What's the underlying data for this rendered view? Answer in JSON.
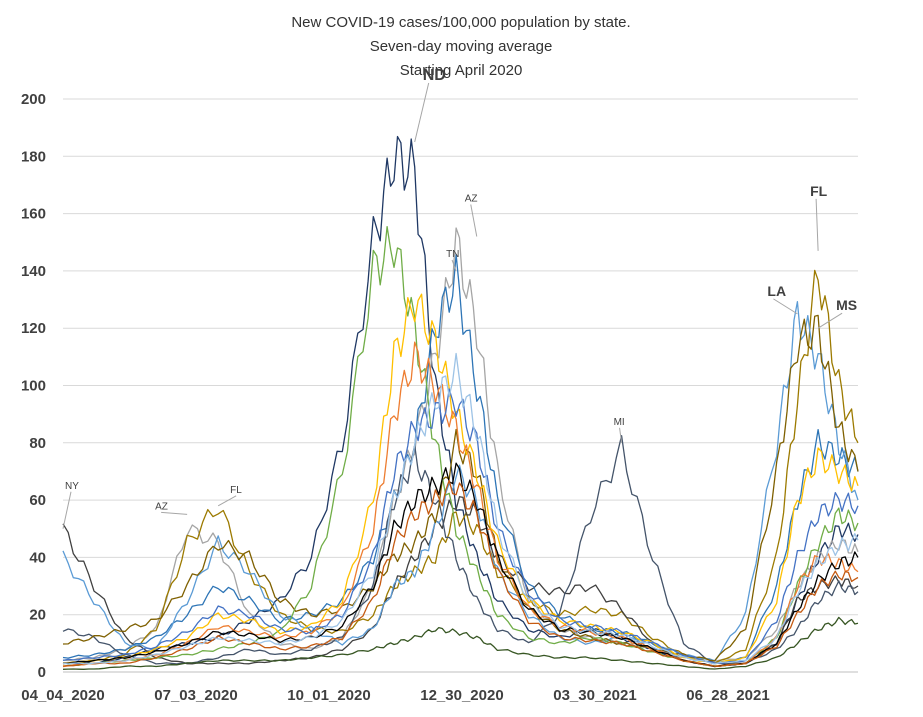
{
  "chart_data": {
    "type": "line",
    "title": [
      "New COVID-19 cases/100,000 population by state.",
      "Seven-day moving average",
      "Starting April 2020"
    ],
    "ylim": [
      0,
      200
    ],
    "yticks": [
      0,
      20,
      40,
      60,
      80,
      100,
      120,
      140,
      160,
      180,
      200
    ],
    "xlim": [
      "04_04_2020",
      "09_24_2021"
    ],
    "xticks": [
      "04_04_2020",
      "07_03_2020",
      "10_01_2020",
      "12_30_2020",
      "03_30_2021",
      "06_28_2021"
    ],
    "grid": true,
    "legend": "none",
    "x_dates": [
      "2020-04-04",
      "2020-04-25",
      "2020-05-16",
      "2020-06-06",
      "2020-06-27",
      "2020-07-18",
      "2020-08-08",
      "2020-08-29",
      "2020-09-19",
      "2020-10-10",
      "2020-10-31",
      "2020-11-14",
      "2020-11-28",
      "2020-12-12",
      "2020-12-26",
      "2021-01-09",
      "2021-01-23",
      "2021-02-13",
      "2021-03-06",
      "2021-03-27",
      "2021-04-17",
      "2021-05-08",
      "2021-05-29",
      "2021-06-19",
      "2021-07-10",
      "2021-07-31",
      "2021-08-14",
      "2021-08-28",
      "2021-09-11",
      "2021-09-24"
    ],
    "series": [
      {
        "name": "ND",
        "color": "#1f3864",
        "values": [
          3,
          3,
          5,
          8,
          10,
          12,
          18,
          25,
          40,
          80,
          150,
          180,
          175,
          100,
          60,
          40,
          25,
          15,
          12,
          15,
          12,
          8,
          4,
          2,
          3,
          10,
          25,
          40,
          50,
          48
        ]
      },
      {
        "name": "AZ",
        "color": "#a5a5a5",
        "values": [
          4,
          5,
          8,
          15,
          50,
          45,
          20,
          10,
          8,
          12,
          30,
          60,
          80,
          110,
          150,
          120,
          70,
          25,
          15,
          12,
          10,
          8,
          5,
          4,
          5,
          15,
          30,
          40,
          45,
          42
        ]
      },
      {
        "name": "FL",
        "color": "#9c7a00",
        "values": [
          3,
          4,
          6,
          15,
          45,
          58,
          35,
          20,
          15,
          14,
          20,
          30,
          35,
          40,
          55,
          50,
          35,
          25,
          20,
          22,
          20,
          12,
          6,
          3,
          8,
          40,
          95,
          140,
          100,
          80
        ]
      },
      {
        "name": "NY",
        "color": "#404040",
        "values": [
          50,
          30,
          12,
          5,
          3,
          3,
          3,
          4,
          5,
          8,
          15,
          30,
          40,
          50,
          60,
          55,
          40,
          30,
          28,
          30,
          22,
          10,
          4,
          2,
          3,
          10,
          25,
          30,
          32,
          30
        ]
      },
      {
        "name": "TN",
        "color": "#2e75b6",
        "values": [
          5,
          6,
          8,
          12,
          20,
          30,
          25,
          18,
          20,
          25,
          40,
          60,
          80,
          120,
          138,
          100,
          60,
          30,
          20,
          15,
          14,
          10,
          5,
          3,
          5,
          30,
          60,
          80,
          75,
          70
        ]
      },
      {
        "name": "MI",
        "color": "#44546a",
        "values": [
          15,
          12,
          6,
          3,
          3,
          5,
          8,
          6,
          8,
          12,
          30,
          60,
          75,
          60,
          40,
          25,
          15,
          10,
          20,
          55,
          78,
          40,
          10,
          3,
          3,
          8,
          15,
          25,
          30,
          28
        ]
      },
      {
        "name": "LA",
        "color": "#5b9bd5",
        "values": [
          40,
          25,
          10,
          8,
          25,
          45,
          35,
          20,
          15,
          10,
          15,
          30,
          35,
          50,
          70,
          60,
          35,
          20,
          12,
          10,
          12,
          10,
          6,
          4,
          20,
          80,
          125,
          110,
          80,
          60
        ]
      },
      {
        "name": "MS",
        "color": "#7f6000",
        "values": [
          10,
          12,
          15,
          18,
          30,
          45,
          40,
          25,
          20,
          22,
          30,
          40,
          45,
          55,
          80,
          70,
          40,
          22,
          15,
          12,
          10,
          8,
          6,
          4,
          15,
          70,
          115,
          120,
          85,
          70
        ]
      },
      {
        "name": "",
        "color": "#70ad47",
        "values": [
          2,
          3,
          4,
          5,
          6,
          8,
          10,
          14,
          30,
          70,
          140,
          150,
          120,
          80,
          50,
          35,
          20,
          12,
          10,
          12,
          10,
          7,
          4,
          2,
          3,
          12,
          30,
          45,
          55,
          52
        ]
      },
      {
        "name": "",
        "color": "#ffc000",
        "values": [
          3,
          4,
          5,
          8,
          12,
          20,
          18,
          14,
          16,
          25,
          60,
          110,
          130,
          115,
          90,
          70,
          45,
          25,
          18,
          16,
          14,
          10,
          5,
          3,
          5,
          25,
          60,
          75,
          70,
          65
        ]
      },
      {
        "name": "",
        "color": "#ed7d31",
        "values": [
          2,
          3,
          4,
          6,
          10,
          16,
          14,
          12,
          14,
          22,
          50,
          90,
          110,
          100,
          85,
          65,
          40,
          22,
          16,
          14,
          12,
          8,
          4,
          2,
          3,
          12,
          30,
          40,
          38,
          35
        ]
      },
      {
        "name": "",
        "color": "#4472c4",
        "values": [
          4,
          5,
          6,
          9,
          14,
          22,
          20,
          15,
          14,
          20,
          40,
          70,
          85,
          90,
          95,
          80,
          50,
          28,
          18,
          16,
          14,
          10,
          6,
          3,
          4,
          18,
          40,
          55,
          60,
          58
        ]
      },
      {
        "name": "",
        "color": "#000000",
        "values": [
          3,
          4,
          5,
          7,
          10,
          14,
          13,
          11,
          12,
          16,
          30,
          50,
          60,
          65,
          70,
          60,
          40,
          22,
          15,
          14,
          12,
          8,
          4,
          2,
          3,
          10,
          22,
          32,
          38,
          40
        ]
      },
      {
        "name": "",
        "color": "#375623",
        "values": [
          1,
          1,
          2,
          2,
          3,
          4,
          4,
          4,
          5,
          6,
          8,
          10,
          12,
          15,
          14,
          12,
          8,
          6,
          5,
          5,
          4,
          3,
          2,
          1,
          2,
          5,
          10,
          15,
          18,
          17
        ]
      },
      {
        "name": "",
        "color": "#c55a11",
        "values": [
          2,
          3,
          3,
          5,
          8,
          12,
          10,
          8,
          9,
          12,
          25,
          45,
          55,
          60,
          65,
          55,
          35,
          18,
          12,
          11,
          10,
          7,
          4,
          2,
          3,
          9,
          20,
          30,
          34,
          33
        ]
      },
      {
        "name": "",
        "color": "#9dc3e6",
        "values": [
          3,
          3,
          4,
          6,
          9,
          12,
          11,
          10,
          12,
          18,
          35,
          60,
          80,
          95,
          105,
          85,
          50,
          25,
          16,
          14,
          13,
          9,
          5,
          3,
          4,
          12,
          28,
          38,
          44,
          46
        ]
      }
    ],
    "annotations": [
      {
        "label": "ND",
        "x_index": 12,
        "y": 185
      },
      {
        "label": "TN",
        "x_index": 14,
        "y": 140
      },
      {
        "label": "AZ",
        "x_index": 15,
        "y": 152
      },
      {
        "label": "MI",
        "x_index": 20,
        "y": 80
      },
      {
        "label": "NY",
        "x_index": 0,
        "y": 50
      },
      {
        "label": "AZ",
        "x_index": 4,
        "y": 55
      },
      {
        "label": "FL",
        "x_index": 5,
        "y": 58
      },
      {
        "label": "FL",
        "x_index": 27,
        "y": 147
      },
      {
        "label": "LA",
        "x_index": 26,
        "y": 125
      },
      {
        "label": "MS",
        "x_index": 27,
        "y": 120
      }
    ]
  }
}
